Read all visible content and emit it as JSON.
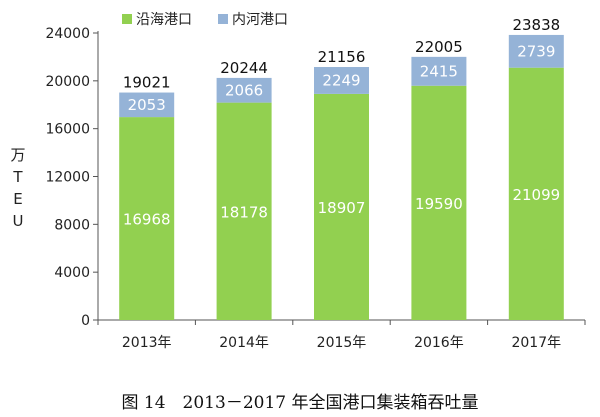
{
  "caption": "图 14　2013－2017 年全国港口集装箱吞吐量",
  "chart_data": {
    "type": "bar",
    "stacked": true,
    "categories": [
      "2013年",
      "2014年",
      "2015年",
      "2016年",
      "2017年"
    ],
    "series": [
      {
        "name": "沿海港口",
        "values": [
          16968,
          18178,
          18907,
          19590,
          21099
        ],
        "color": "#92d050"
      },
      {
        "name": "内河港口",
        "values": [
          2053,
          2066,
          2249,
          2415,
          2739
        ],
        "color": "#95b3d7"
      }
    ],
    "totals": [
      19021,
      20244,
      21156,
      22005,
      23838
    ],
    "ylabel": "万TEU",
    "ylim": [
      0,
      24000
    ],
    "yticks": [
      0,
      4000,
      8000,
      12000,
      16000,
      20000,
      24000
    ],
    "grid": false,
    "legend": "top-left"
  }
}
